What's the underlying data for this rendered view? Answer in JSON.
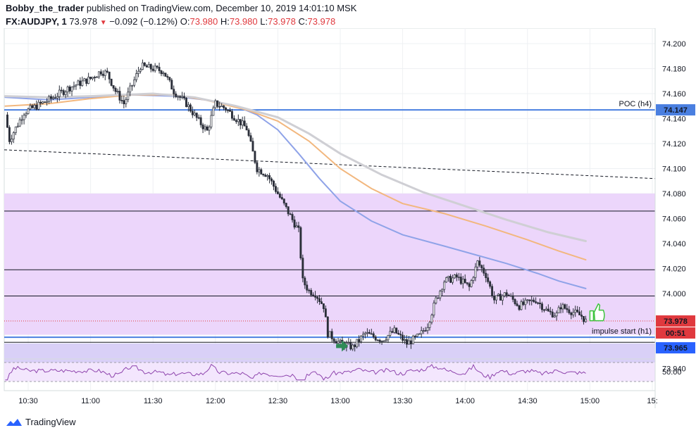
{
  "header": {
    "author": "Bobby_the_trader",
    "published_text": "published on TradingView.com, December 10, 2019 14:01:10 MSK",
    "symbol": "FX:AUDJPY, 1",
    "last": "73.978",
    "change": "−0.092 (−0.12%)",
    "o_label": "O:",
    "o_value": "73.980",
    "h_label": "H:",
    "h_value": "73.980",
    "l_label": "L:",
    "l_value": "73.978",
    "c_label": "C:",
    "c_value": "73.978"
  },
  "footer": {
    "brand": "TradingView"
  },
  "colors": {
    "candle_body": "#2a2e39",
    "zone_upper": "#ecd6fb",
    "zone_lower": "#d9d0f7",
    "level_blue": "#4a7fe0",
    "ma_blue": "#8fa3e8",
    "ma_orange": "#f2b77e",
    "ma_grey": "#cfcfd4",
    "rsi": "#8e44ad",
    "label_blue": "#2962ff"
  },
  "chart_data": {
    "type": "candlestick",
    "instrument": "FX:AUDJPY",
    "timeframe": "1",
    "y_ticks": [
      74.2,
      74.18,
      74.16,
      74.14,
      74.12,
      74.1,
      74.08,
      74.06,
      74.04,
      74.02,
      74.0,
      73.94
    ],
    "y_tick_labels": [
      "74.200",
      "74.180",
      "74.160",
      "74.140",
      "74.120",
      "74.100",
      "74.080",
      "74.060",
      "74.040",
      "74.020",
      "74.000",
      "73.940"
    ],
    "x_ticks": [
      "10:30",
      "11:00",
      "11:30",
      "12:00",
      "12:30",
      "13:00",
      "13:30",
      "14:00",
      "14:30",
      "15:00",
      "15:"
    ],
    "price_labels": [
      {
        "value": "74.147",
        "name": "POC (h4)",
        "color": "#4a7fe0"
      },
      {
        "value": "73.978",
        "name": "",
        "color": "#e0393e"
      },
      {
        "value": "00:51",
        "name": "",
        "color": "#e0393e"
      },
      {
        "value": "73.965",
        "name": "impulse start (h1)",
        "color": "#2962ff"
      }
    ],
    "annotations": [
      "POC (h4)",
      "impulse start (h1)"
    ],
    "rsi": {
      "level_label": "50.00",
      "upper": 70,
      "lower": 30
    }
  }
}
